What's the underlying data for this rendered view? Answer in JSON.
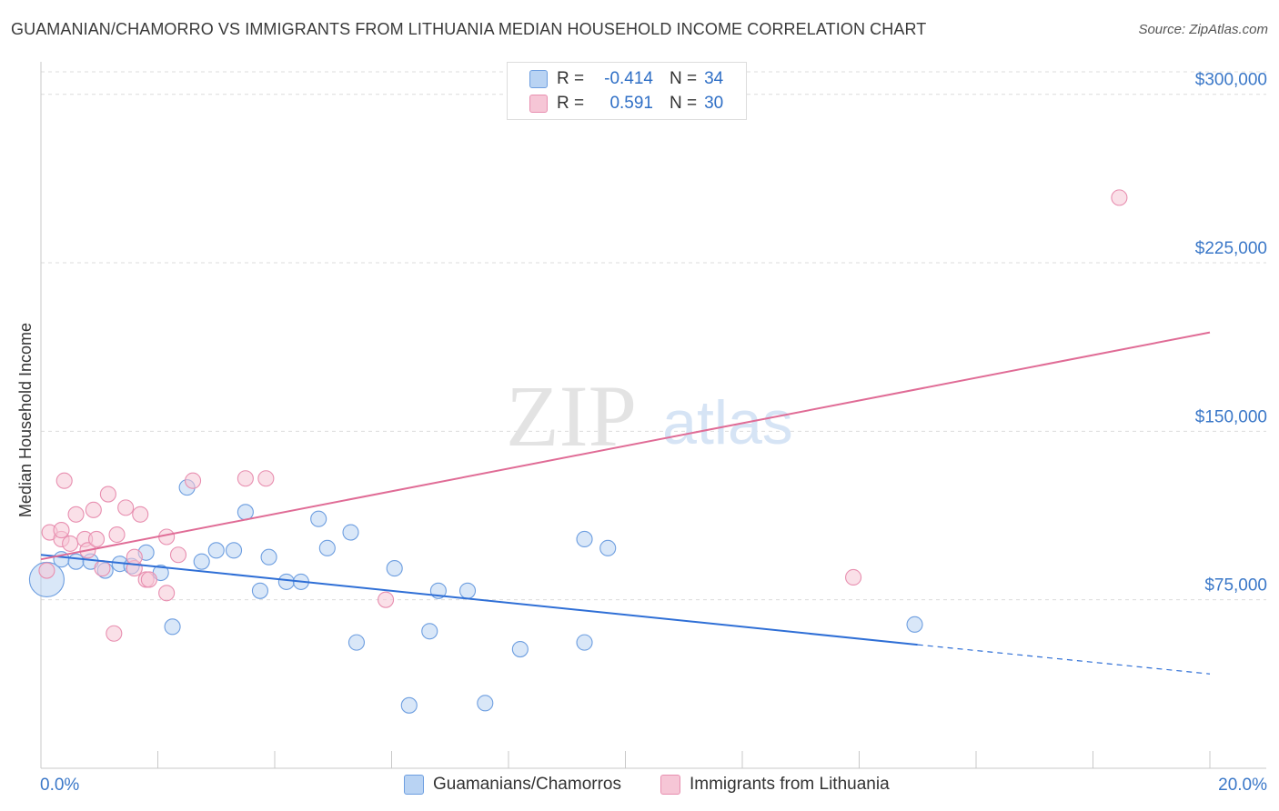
{
  "title": "GUAMANIAN/CHAMORRO VS IMMIGRANTS FROM LITHUANIA MEDIAN HOUSEHOLD INCOME CORRELATION CHART",
  "source": "Source: ZipAtlas.com",
  "watermark": {
    "zip": "ZIP",
    "atlas": "atlas"
  },
  "colors": {
    "blue": "#2f6fd6",
    "blue_fill": "#b9d3f3",
    "pink": "#e06c96",
    "pink_fill": "#f6c6d6",
    "tick_label": "#3b78c8",
    "grid": "#dcdcdc"
  },
  "legend": {
    "rows": [
      {
        "r_label": "R =",
        "r_value": "-0.414",
        "n_label": "N =",
        "n_value": "34",
        "color": "blue"
      },
      {
        "r_label": "R =",
        "r_value": "0.591",
        "n_label": "N =",
        "n_value": "30",
        "color": "pink"
      }
    ]
  },
  "bottom_legend": {
    "series1": "Guamanians/Chamorros",
    "series2": "Immigrants from Lithuania"
  },
  "chart_data": {
    "type": "scatter",
    "title": "GUAMANIAN/CHAMORRO VS IMMIGRANTS FROM LITHUANIA MEDIAN HOUSEHOLD INCOME CORRELATION CHART",
    "xlabel": "",
    "ylabel": "Median Household Income",
    "xlim": [
      0,
      20
    ],
    "ylim": [
      0,
      300000
    ],
    "x_tick_labels": {
      "left": "0.0%",
      "right": "20.0%"
    },
    "y_ticks": [
      {
        "value": 75000,
        "label": "$75,000"
      },
      {
        "value": 150000,
        "label": "$150,000"
      },
      {
        "value": 225000,
        "label": "$225,000"
      },
      {
        "value": 300000,
        "label": "$300,000"
      }
    ],
    "grid": true,
    "legend_position": "top-center",
    "series": [
      {
        "name": "Guamanians/Chamorros",
        "color": "blue",
        "points": [
          [
            0.1,
            84000
          ],
          [
            0.35,
            93000
          ],
          [
            0.6,
            92000
          ],
          [
            0.85,
            92000
          ],
          [
            1.1,
            88000
          ],
          [
            1.35,
            91000
          ],
          [
            1.55,
            90000
          ],
          [
            1.8,
            96000
          ],
          [
            2.05,
            87000
          ],
          [
            2.25,
            63000
          ],
          [
            2.5,
            125000
          ],
          [
            2.75,
            92000
          ],
          [
            3.0,
            97000
          ],
          [
            3.3,
            97000
          ],
          [
            3.5,
            114000
          ],
          [
            3.75,
            79000
          ],
          [
            3.9,
            94000
          ],
          [
            4.2,
            83000
          ],
          [
            4.45,
            83000
          ],
          [
            4.75,
            111000
          ],
          [
            4.9,
            98000
          ],
          [
            5.3,
            105000
          ],
          [
            5.4,
            56000
          ],
          [
            6.05,
            89000
          ],
          [
            6.3,
            28000
          ],
          [
            6.65,
            61000
          ],
          [
            6.8,
            79000
          ],
          [
            7.3,
            79000
          ],
          [
            7.6,
            29000
          ],
          [
            8.2,
            53000
          ],
          [
            9.3,
            102000
          ],
          [
            9.3,
            56000
          ],
          [
            9.7,
            98000
          ],
          [
            14.95,
            64000
          ]
        ],
        "sizes": [
          3,
          1,
          1,
          1,
          1,
          1,
          1,
          1,
          1,
          1,
          1,
          1,
          1,
          1,
          1,
          1,
          1,
          1,
          1,
          1,
          1,
          1,
          1,
          1,
          1,
          1,
          1,
          1,
          1,
          1,
          1,
          1,
          1,
          1
        ],
        "trend": {
          "x0": 0,
          "y0": 95000,
          "x1": 15.0,
          "y1": 55000,
          "x_dash_end": 20,
          "y_dash_end": 42000
        }
      },
      {
        "name": "Immigrants from Lithuania",
        "color": "pink",
        "points": [
          [
            0.1,
            88000
          ],
          [
            0.15,
            105000
          ],
          [
            0.35,
            102000
          ],
          [
            0.35,
            106000
          ],
          [
            0.4,
            128000
          ],
          [
            0.5,
            100000
          ],
          [
            0.6,
            113000
          ],
          [
            0.75,
            102000
          ],
          [
            0.8,
            97000
          ],
          [
            0.9,
            115000
          ],
          [
            0.95,
            102000
          ],
          [
            1.05,
            89000
          ],
          [
            1.15,
            122000
          ],
          [
            1.3,
            104000
          ],
          [
            1.45,
            116000
          ],
          [
            1.6,
            89000
          ],
          [
            1.6,
            94000
          ],
          [
            1.7,
            113000
          ],
          [
            1.8,
            84000
          ],
          [
            1.85,
            84000
          ],
          [
            2.15,
            103000
          ],
          [
            2.15,
            78000
          ],
          [
            2.35,
            95000
          ],
          [
            2.6,
            128000
          ],
          [
            1.25,
            60000
          ],
          [
            3.5,
            129000
          ],
          [
            3.85,
            129000
          ],
          [
            5.9,
            75000
          ],
          [
            13.9,
            85000
          ],
          [
            18.45,
            254000
          ]
        ],
        "trend": {
          "x0": 0,
          "y0": 93000,
          "x1": 20,
          "y1": 194000
        }
      }
    ]
  }
}
